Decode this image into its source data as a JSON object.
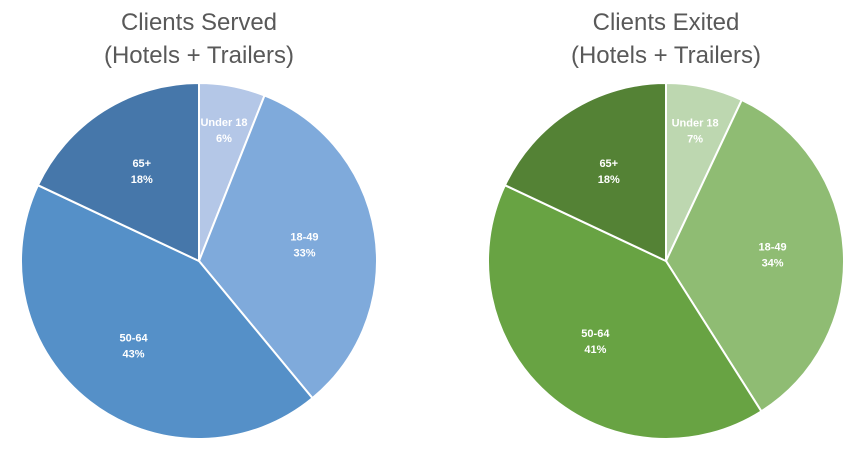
{
  "chart_data": [
    {
      "type": "pie",
      "title": "Clients Served",
      "subtitle": "(Hotels + Trailers)",
      "categories": [
        "Under 18",
        "18-49",
        "50-64",
        "65+"
      ],
      "values": [
        6,
        33,
        43,
        18
      ],
      "value_labels": [
        "6%",
        "33%",
        "43%",
        "18%"
      ],
      "colors": [
        "#b4c7e7",
        "#7faadb",
        "#5590c8",
        "#4677aa"
      ]
    },
    {
      "type": "pie",
      "title": "Clients Exited",
      "subtitle": "(Hotels + Trailers)",
      "categories": [
        "Under 18",
        "18-49",
        "50-64",
        "65+"
      ],
      "values": [
        7,
        34,
        41,
        18
      ],
      "value_labels": [
        "7%",
        "34%",
        "41%",
        "18%"
      ],
      "colors": [
        "#bdd7b0",
        "#8fbc73",
        "#68a343",
        "#548235"
      ]
    }
  ]
}
